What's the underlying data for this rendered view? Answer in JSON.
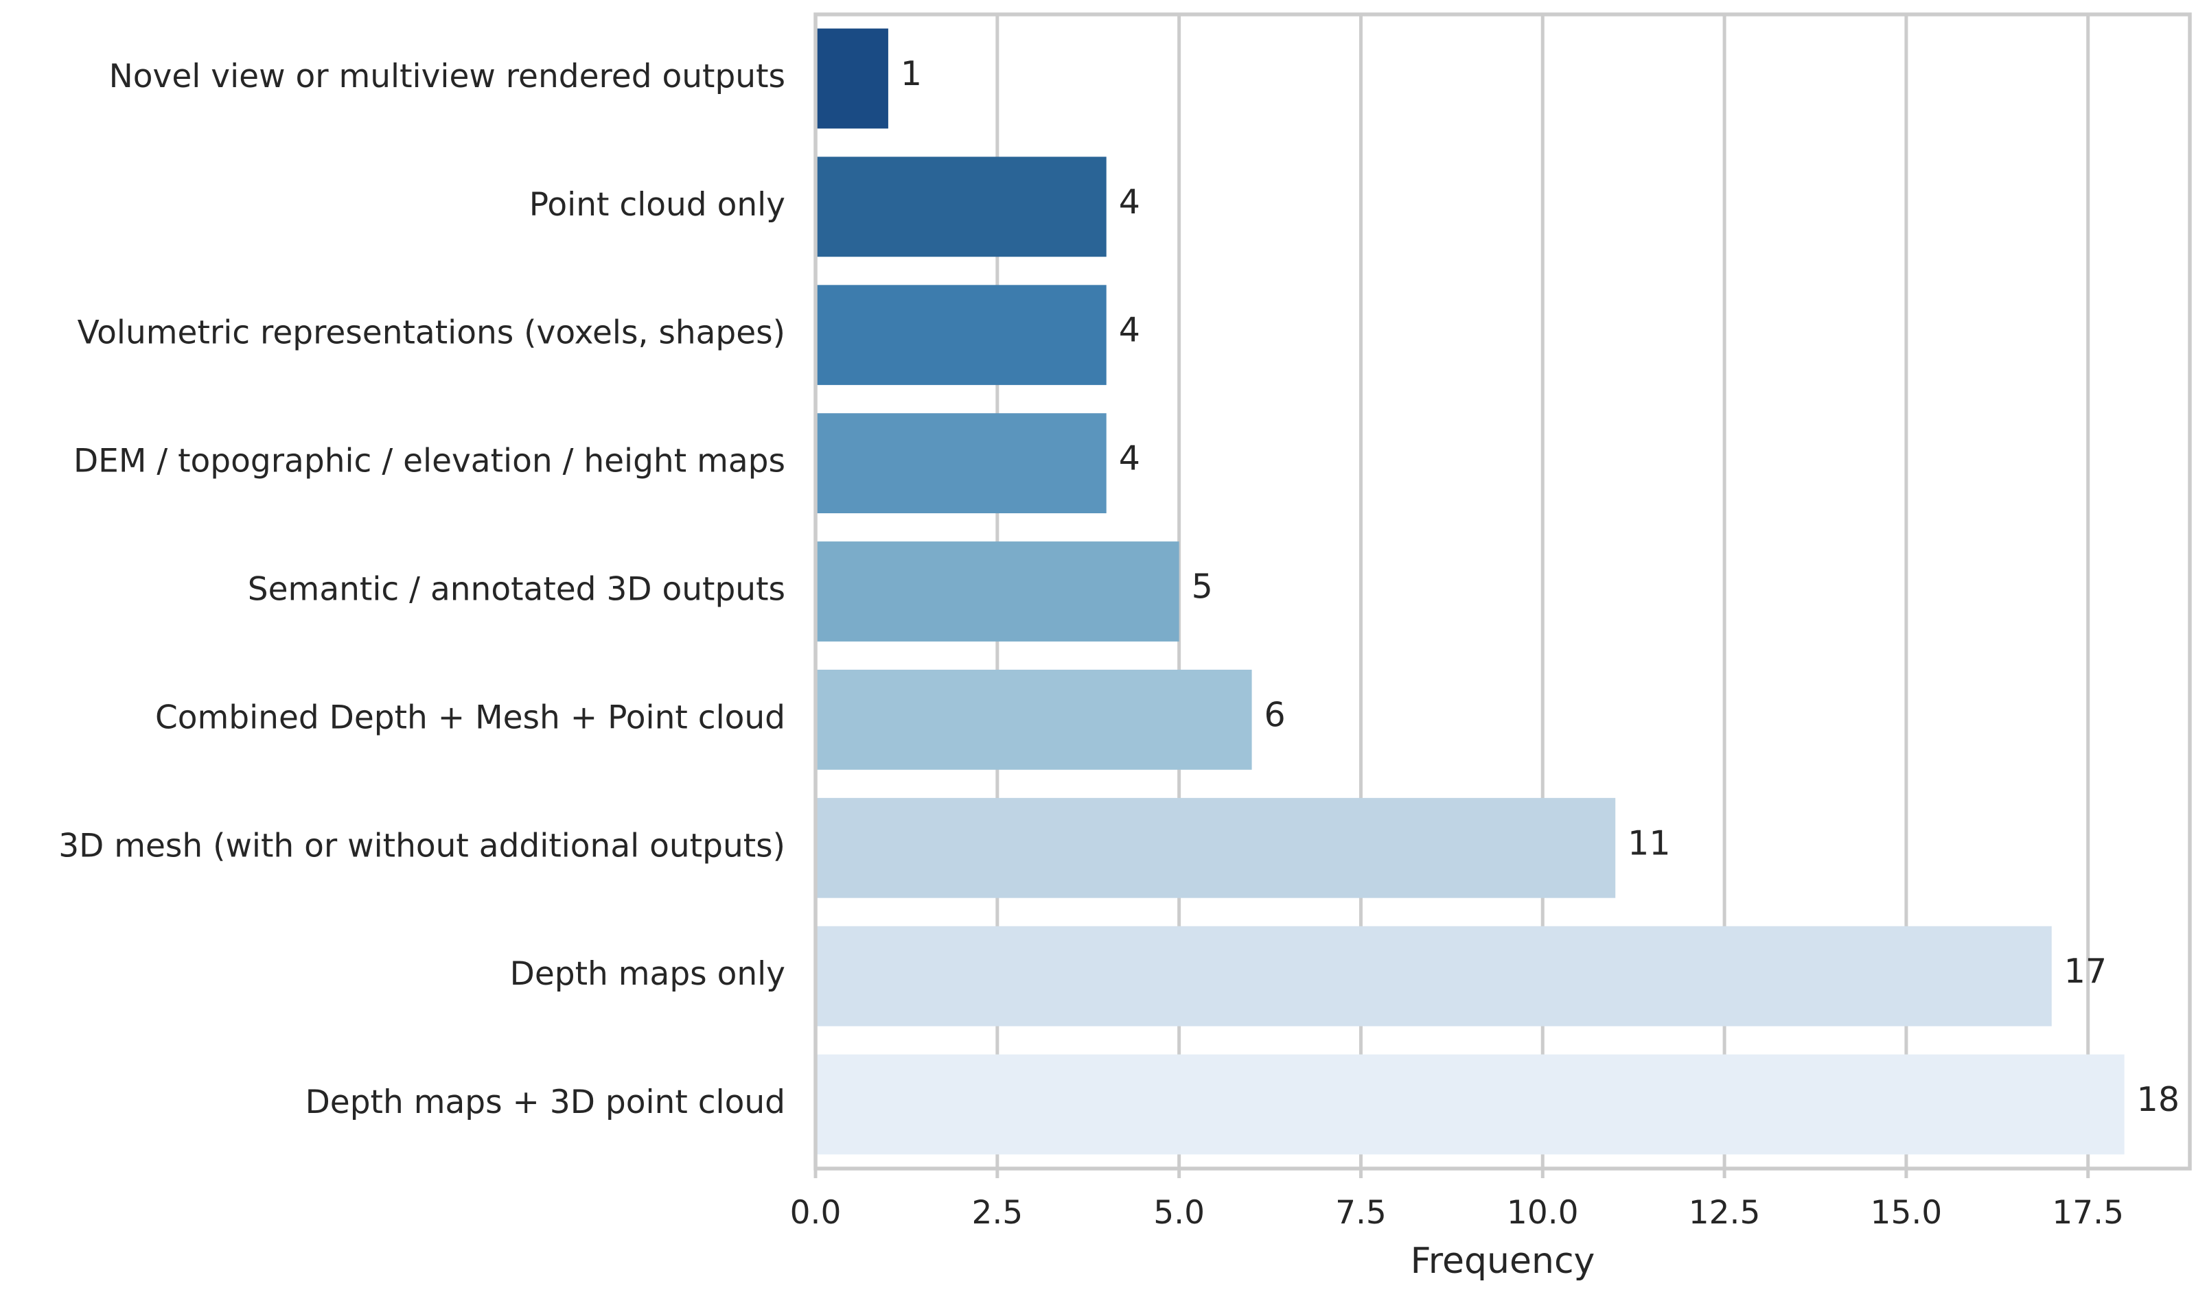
{
  "chart_data": {
    "type": "bar",
    "orientation": "horizontal",
    "categories": [
      "Novel view or multiview rendered outputs",
      "Point cloud only",
      "Volumetric representations (voxels, shapes)",
      "DEM / topographic / elevation / height maps",
      "Semantic / annotated 3D outputs",
      "Combined Depth + Mesh + Point cloud",
      "3D mesh (with or without additional outputs)",
      "Depth maps only",
      "Depth maps + 3D point cloud"
    ],
    "values": [
      1,
      4,
      4,
      4,
      5,
      6,
      11,
      17,
      18
    ],
    "value_labels": [
      "1",
      "4",
      "4",
      "4",
      "5",
      "6",
      "11",
      "17",
      "18"
    ],
    "colors": [
      "#1a4b84",
      "#2a6496",
      "#3d7cad",
      "#5b95bd",
      "#7bacc9",
      "#9fc3d8",
      "#bfd4e4",
      "#d3e1ee",
      "#e6eef7"
    ],
    "xlabel": "Frequency",
    "ylabel": "",
    "title": "",
    "xlim": [
      0,
      18.9
    ],
    "xticks": [
      0,
      2.5,
      5,
      7.5,
      10,
      12.5,
      15,
      17.5
    ],
    "xtick_labels": [
      "0.0",
      "2.5",
      "5.0",
      "7.5",
      "10.0",
      "12.5",
      "15.0",
      "17.5"
    ],
    "grid": "vertical",
    "legend": "none"
  }
}
